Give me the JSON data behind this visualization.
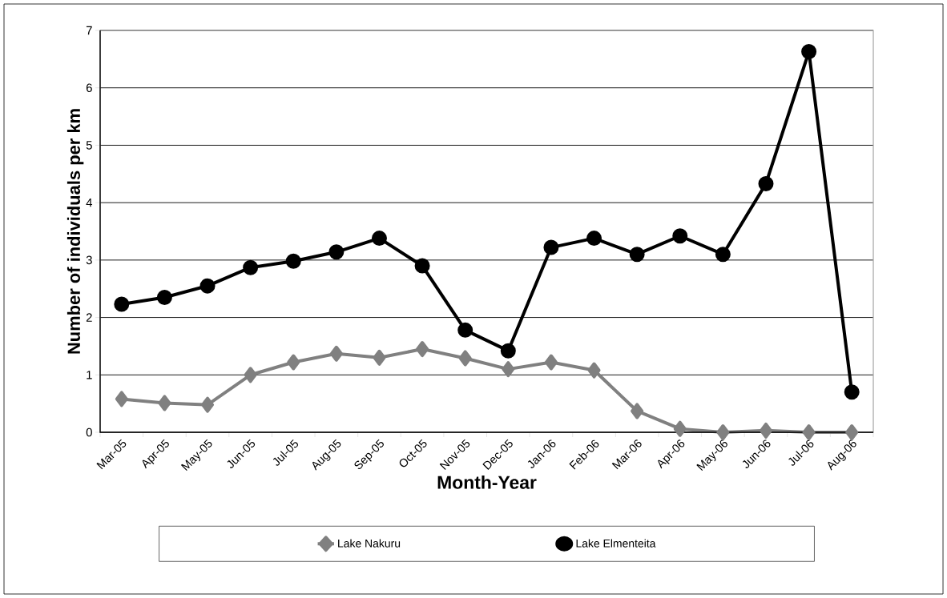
{
  "chart_data": {
    "type": "line",
    "xlabel": "Month-Year",
    "ylabel": "Number of individuals per km",
    "categories": [
      "Mar-05",
      "Apr-05",
      "May-05",
      "Jun-05",
      "Jul-05",
      "Aug-05",
      "Sep-05",
      "Oct-05",
      "Nov-05",
      "Dec-05",
      "Jan-06",
      "Feb-06",
      "Mar-06",
      "Apr-06",
      "May-06",
      "Jun-06",
      "Jul-06",
      "Aug-06"
    ],
    "series": [
      {
        "name": "Lake Nakuru",
        "color": "#808080",
        "marker": "diamond",
        "values": [
          0.58,
          0.51,
          0.48,
          1.0,
          1.22,
          1.37,
          1.3,
          1.45,
          1.29,
          1.1,
          1.22,
          1.08,
          0.37,
          0.06,
          0.0,
          0.03,
          0.0,
          0.0
        ]
      },
      {
        "name": "Lake Elmenteita",
        "color": "#000000",
        "marker": "circle",
        "values": [
          2.23,
          2.35,
          2.55,
          2.87,
          2.98,
          3.14,
          3.38,
          2.9,
          1.78,
          1.42,
          3.22,
          3.38,
          3.1,
          3.42,
          3.1,
          4.33,
          6.63,
          0.7
        ]
      }
    ],
    "ylim": [
      0,
      7
    ],
    "yticks": [
      0,
      1,
      2,
      3,
      4,
      5,
      6,
      7
    ],
    "grid": "y",
    "legend": "bottom",
    "line_style": "solid"
  }
}
